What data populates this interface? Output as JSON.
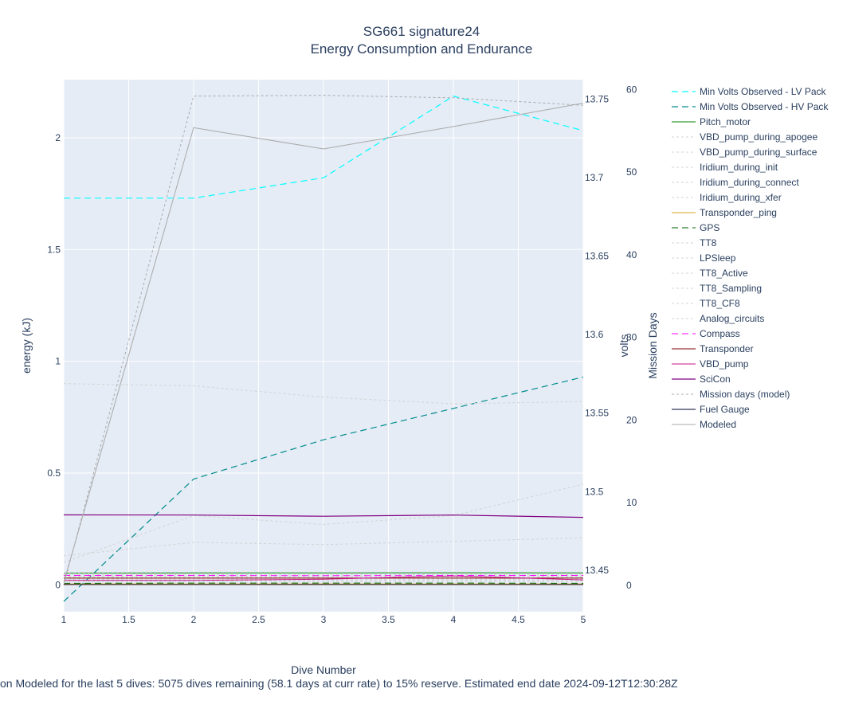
{
  "chart_data": {
    "type": "line",
    "title": "SG661 signature24",
    "subtitle": "Energy Consumption and Endurance",
    "xlabel": "Dive Number",
    "ylabel_left": "energy (kJ)",
    "ylabel_volts": "volts",
    "ylabel_days": "Mission Days",
    "footer": "on Modeled for the last 5 dives: 5075 dives remaining (58.1 days at curr rate) to 15% reserve. Estimated end date 2024-09-12T12:30:28Z",
    "x_range": [
      1,
      5
    ],
    "x_ticks": [
      "1",
      "1.5",
      "2",
      "2.5",
      "3",
      "3.5",
      "4",
      "4.5",
      "5"
    ],
    "x_tick_values": [
      1,
      1.5,
      2,
      2.5,
      3,
      3.5,
      4,
      4.5,
      5
    ],
    "y_energy_range": [
      -0.12,
      2.26
    ],
    "y_energy_ticks": [
      "0",
      "0.5",
      "1",
      "1.5",
      "2"
    ],
    "y_energy_tick_values": [
      0,
      0.5,
      1,
      1.5,
      2
    ],
    "y_volts_range": [
      13.4235,
      13.7625
    ],
    "y_volts_ticks": [
      "13.45",
      "13.5",
      "13.55",
      "13.6",
      "13.65",
      "13.7",
      "13.75"
    ],
    "y_volts_tick_values": [
      13.45,
      13.5,
      13.55,
      13.6,
      13.65,
      13.7,
      13.75
    ],
    "y_days_range": [
      -3.2,
      61.2
    ],
    "y_days_ticks": [
      "0",
      "10",
      "20",
      "30",
      "40",
      "50",
      "60"
    ],
    "y_days_tick_values": [
      0,
      10,
      20,
      30,
      40,
      50,
      60
    ],
    "grid": true,
    "legend_position": "right",
    "series": [
      {
        "name": "Min Volts Observed - LV Pack",
        "axis": "volts",
        "color": "#00ffff",
        "dash": "8,5",
        "width": 1.2,
        "x": [
          1,
          2,
          3,
          4,
          5
        ],
        "values": [
          13.687,
          13.687,
          13.7,
          13.752,
          13.73
        ]
      },
      {
        "name": "Min Volts Observed - HV Pack",
        "axis": "volts",
        "color": "#008b8b",
        "dash": "8,5",
        "width": 1.2,
        "x": [
          1,
          2,
          3,
          4,
          5
        ],
        "values": [
          13.43,
          13.508,
          13.533,
          13.553,
          13.573
        ]
      },
      {
        "name": "Pitch_motor",
        "axis": "energy",
        "color": "#008000",
        "dash": "",
        "width": 1,
        "x": [
          1,
          2,
          3,
          4,
          5
        ],
        "values": [
          0.052,
          0.053,
          0.053,
          0.054,
          0.053
        ]
      },
      {
        "name": "VBD_pump_during_apogee",
        "axis": "energy",
        "color": "#d3d3d3",
        "dash": "3,3",
        "width": 1,
        "x": [
          1,
          2,
          3,
          4,
          5
        ],
        "values": [
          0.9,
          0.89,
          0.84,
          0.81,
          0.82
        ]
      },
      {
        "name": "VBD_pump_during_surface",
        "axis": "energy",
        "color": "#d3d3d3",
        "dash": "3,3",
        "width": 1,
        "x": [
          1,
          2,
          3,
          4,
          5
        ],
        "values": [
          0.1,
          0.31,
          0.27,
          0.31,
          0.45
        ]
      },
      {
        "name": "Iridium_during_init",
        "axis": "energy",
        "color": "#d3d3d3",
        "dash": "3,3",
        "width": 1,
        "x": [
          1,
          2,
          3,
          4,
          5
        ],
        "values": [
          0.13,
          0.19,
          0.18,
          0.195,
          0.21
        ]
      },
      {
        "name": "Iridium_during_connect",
        "axis": "energy",
        "color": "#d3d3d3",
        "dash": "3,3",
        "width": 1,
        "x": [
          1,
          2,
          3,
          4,
          5
        ],
        "values": [
          0.05,
          0.05,
          0.05,
          0.05,
          0.05
        ]
      },
      {
        "name": "Iridium_during_xfer",
        "axis": "energy",
        "color": "#d3d3d3",
        "dash": "3,3",
        "width": 1,
        "x": [
          1,
          2,
          3,
          4,
          5
        ],
        "values": [
          0.045,
          0.046,
          0.045,
          0.046,
          0.045
        ]
      },
      {
        "name": "Transponder_ping",
        "axis": "energy",
        "color": "#daa520",
        "dash": "",
        "width": 1,
        "x": [
          1,
          2,
          3,
          4,
          5
        ],
        "values": [
          0.004,
          0.004,
          0.004,
          0.004,
          0.004
        ]
      },
      {
        "name": "GPS",
        "axis": "energy",
        "color": "#006400",
        "dash": "8,5",
        "width": 1,
        "x": [
          1,
          2,
          3,
          4,
          5
        ],
        "values": [
          0.007,
          0.008,
          0.008,
          0.008,
          0.007
        ]
      },
      {
        "name": "TT8",
        "axis": "energy",
        "color": "#d3d3d3",
        "dash": "3,3",
        "width": 1,
        "x": [
          1,
          2,
          3,
          4,
          5
        ],
        "values": [
          0.04,
          0.04,
          0.04,
          0.04,
          0.04
        ]
      },
      {
        "name": "LPSleep",
        "axis": "energy",
        "color": "#d3d3d3",
        "dash": "3,3",
        "width": 1,
        "x": [
          1,
          2,
          3,
          4,
          5
        ],
        "values": [
          0.035,
          0.036,
          0.035,
          0.036,
          0.035
        ]
      },
      {
        "name": "TT8_Active",
        "axis": "energy",
        "color": "#d3d3d3",
        "dash": "3,3",
        "width": 1,
        "x": [
          1,
          2,
          3,
          4,
          5
        ],
        "values": [
          0.03,
          0.031,
          0.03,
          0.031,
          0.03
        ]
      },
      {
        "name": "TT8_Sampling",
        "axis": "energy",
        "color": "#d3d3d3",
        "dash": "3,3",
        "width": 1,
        "x": [
          1,
          2,
          3,
          4,
          5
        ],
        "values": [
          0.025,
          0.025,
          0.025,
          0.025,
          0.025
        ]
      },
      {
        "name": "TT8_CF8",
        "axis": "energy",
        "color": "#d3d3d3",
        "dash": "3,3",
        "width": 1,
        "x": [
          1,
          2,
          3,
          4,
          5
        ],
        "values": [
          0.02,
          0.02,
          0.02,
          0.02,
          0.02
        ]
      },
      {
        "name": "Analog_circuits",
        "axis": "energy",
        "color": "#d3d3d3",
        "dash": "3,3",
        "width": 1,
        "x": [
          1,
          2,
          3,
          4,
          5
        ],
        "values": [
          0.015,
          0.015,
          0.015,
          0.015,
          0.015
        ]
      },
      {
        "name": "Compass",
        "axis": "energy",
        "color": "#ff00ff",
        "dash": "8,5",
        "width": 1,
        "x": [
          1,
          2,
          3,
          4,
          5
        ],
        "values": [
          0.042,
          0.042,
          0.041,
          0.042,
          0.042
        ]
      },
      {
        "name": "Transponder",
        "axis": "energy",
        "color": "#800000",
        "dash": "",
        "width": 1,
        "x": [
          1,
          2,
          3,
          4,
          5
        ],
        "values": [
          0.03,
          0.03,
          0.03,
          0.03,
          0.03
        ]
      },
      {
        "name": "VBD_pump",
        "axis": "energy",
        "color": "#c71585",
        "dash": "",
        "width": 1,
        "x": [
          1,
          2,
          3,
          4,
          5
        ],
        "values": [
          0.02,
          0.02,
          0.025,
          0.04,
          0.022
        ]
      },
      {
        "name": "SciCon",
        "axis": "energy",
        "color": "#800080",
        "dash": "",
        "width": 1.2,
        "x": [
          1,
          2,
          3,
          4,
          5
        ],
        "values": [
          0.313,
          0.312,
          0.307,
          0.312,
          0.302
        ]
      },
      {
        "name": "Mission days (model)",
        "axis": "days",
        "color": "#a9a9a9",
        "dash": "3,3",
        "width": 1,
        "x": [
          1,
          2,
          3,
          4,
          5
        ],
        "values": [
          0,
          59.2,
          59.3,
          59,
          58.1
        ]
      },
      {
        "name": "Fuel Gauge",
        "axis": "energy",
        "color": "#000033",
        "dash": "",
        "width": 1,
        "x": [
          1,
          2,
          3,
          4,
          5
        ],
        "values": [
          0.001,
          0.001,
          0.001,
          0.001,
          0.001
        ]
      },
      {
        "name": "Modeled",
        "axis": "energy",
        "color": "#a9a9a9",
        "dash": "",
        "width": 1,
        "x": [
          1,
          2,
          3,
          4,
          5
        ],
        "values": [
          0.01,
          2.045,
          1.95,
          2.05,
          2.155
        ]
      }
    ]
  }
}
